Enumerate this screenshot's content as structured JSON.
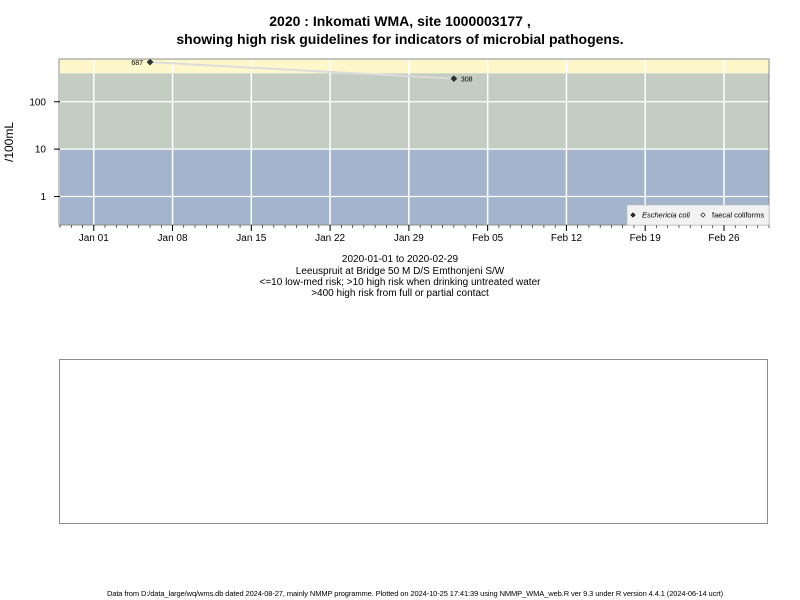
{
  "title_line1": "2020 : Inkomati WMA, site 1000003177 ,",
  "title_line2": "showing high risk guidelines for indicators of microbial pathogens.",
  "subtitle": [
    "2020-01-01 to 2020-02-29",
    "Leeuspruit at Bridge 50 M D/S Emthonjeni S/W",
    "<=10 low-med risk; >10 high risk when drinking untreated water",
    ">400 high risk from full or partial contact"
  ],
  "footer": "Data from D:/data_large/wq/wms.db dated 2024-08-27, mainly NMMP programme. Plotted on 2024-10-25 17:41:39 using NMMP_WMA_web.R ver 9.3 under R version 4.4.1 (2024-06-14 ucrt)",
  "colors": {
    "band_low": "#a3b4cc",
    "band_mid": "#c3cdc2",
    "band_high": "#fdf7cb",
    "grid": "#ffffff",
    "series_line": "#dcdcdc",
    "point": "#333333"
  },
  "chart_data": {
    "type": "line",
    "ylabel": "/100mL",
    "yscale": "log",
    "ylim": [
      0.25,
      800
    ],
    "yticks": [
      {
        "value": 1,
        "label": "1"
      },
      {
        "value": 10,
        "label": "10"
      },
      {
        "value": 100,
        "label": "100"
      }
    ],
    "xlim": [
      "2019-12-29",
      "2020-03-01"
    ],
    "xticks": [
      {
        "date": "2020-01-01",
        "label": "Jan 01"
      },
      {
        "date": "2020-01-08",
        "label": "Jan 08"
      },
      {
        "date": "2020-01-15",
        "label": "Jan 15"
      },
      {
        "date": "2020-01-22",
        "label": "Jan 22"
      },
      {
        "date": "2020-01-29",
        "label": "Jan 29"
      },
      {
        "date": "2020-02-05",
        "label": "Feb 05"
      },
      {
        "date": "2020-02-12",
        "label": "Feb 12"
      },
      {
        "date": "2020-02-19",
        "label": "Feb 19"
      },
      {
        "date": "2020-02-26",
        "label": "Feb 26"
      }
    ],
    "risk_bands": [
      {
        "from": 0.25,
        "to": 10,
        "color": "#a3b4cc"
      },
      {
        "from": 10,
        "to": 400,
        "color": "#c3cdc2"
      },
      {
        "from": 400,
        "to": 800,
        "color": "#fdf7cb"
      }
    ],
    "series": [
      {
        "name": "Eschericia coli",
        "marker": "filled-diamond",
        "points": [
          {
            "date": "2020-01-06",
            "value": 687,
            "label": "687"
          },
          {
            "date": "2020-02-02",
            "value": 308,
            "label": "308"
          }
        ]
      },
      {
        "name": "faecal coliforms",
        "marker": "open-diamond",
        "points": []
      }
    ],
    "legend": {
      "position": "bottom-right"
    }
  }
}
